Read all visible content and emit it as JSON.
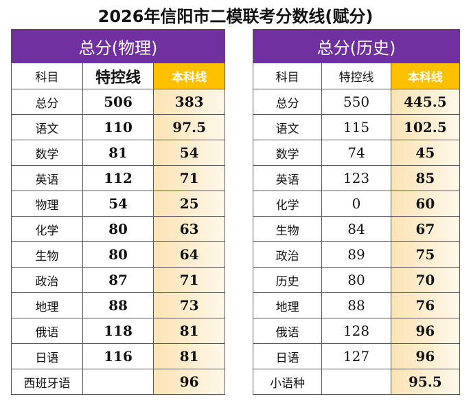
{
  "title": "2026年信阳市二模联考分数线(赋分)",
  "tables": [
    {
      "title": "总分(物理)",
      "columns": [
        "科目",
        "特控线",
        "本科线"
      ],
      "rows": [
        [
          "总分",
          "506",
          "383"
        ],
        [
          "语文",
          "110",
          "97.5"
        ],
        [
          "数学",
          "81",
          "54"
        ],
        [
          "英语",
          "112",
          "71"
        ],
        [
          "物理",
          "54",
          "25"
        ],
        [
          "化学",
          "80",
          "63"
        ],
        [
          "生物",
          "80",
          "64"
        ],
        [
          "政治",
          "87",
          "71"
        ],
        [
          "地理",
          "88",
          "73"
        ],
        [
          "俄语",
          "118",
          "81"
        ],
        [
          "日语",
          "116",
          "81"
        ],
        [
          "西班牙语",
          null,
          "96"
        ]
      ]
    },
    {
      "title": "总分(历史)",
      "columns": [
        "科目",
        "特控线",
        "本科线"
      ],
      "rows": [
        [
          "总分",
          "550",
          "445.5"
        ],
        [
          "语文",
          "115",
          "102.5"
        ],
        [
          "数学",
          "74",
          "45"
        ],
        [
          "英语",
          "123",
          "85"
        ],
        [
          "化学",
          "0",
          "60"
        ],
        [
          "生物",
          "84",
          "67"
        ],
        [
          "政治",
          "89",
          "75"
        ],
        [
          "历史",
          "80",
          "70"
        ],
        [
          "地理",
          "88",
          "76"
        ],
        [
          "俄语",
          "128",
          "96"
        ],
        [
          "日语",
          "127",
          "96"
        ],
        [
          "小语种",
          null,
          "95.5"
        ]
      ]
    }
  ]
}
